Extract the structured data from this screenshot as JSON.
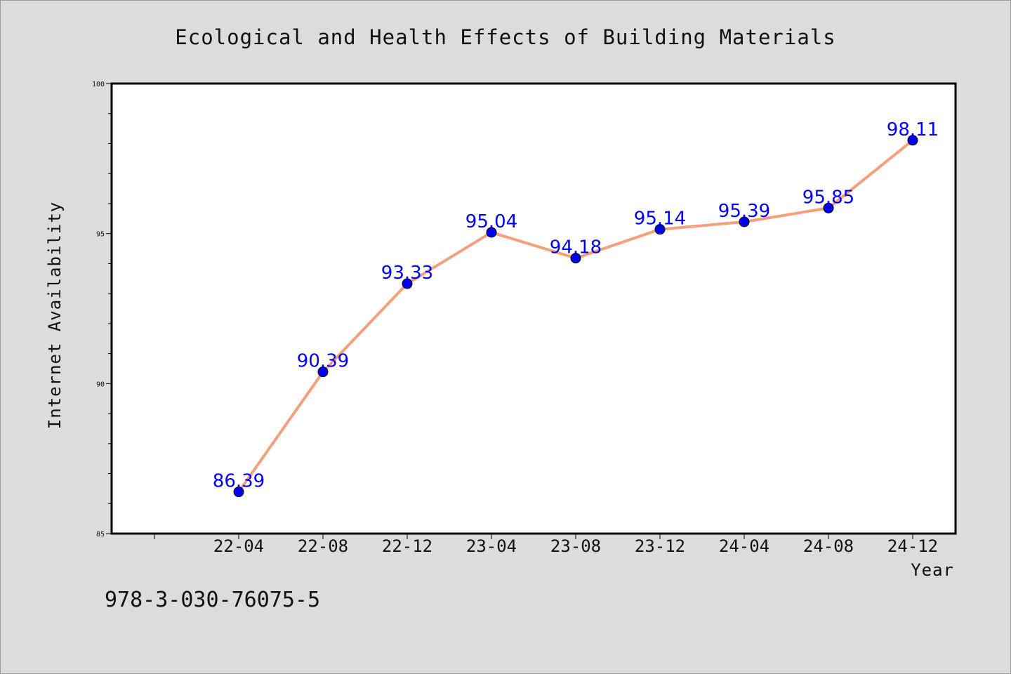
{
  "chart_data": {
    "type": "line",
    "title": "Ecological and Health Effects of Building Materials",
    "xlabel": "Year",
    "ylabel": "Internet Availability",
    "categories": [
      "22-04",
      "22-08",
      "22-12",
      "23-04",
      "23-08",
      "23-12",
      "24-04",
      "24-08",
      "24-12"
    ],
    "series": [
      {
        "values": [
          86.39,
          90.39,
          93.33,
          95.04,
          94.18,
          95.14,
          95.39,
          95.85,
          98.11
        ],
        "data_labels": [
          "86.39",
          "90.39",
          "93.33",
          "95.04",
          "94.18",
          "95.14",
          "95.39",
          "95.85",
          "98.11"
        ]
      }
    ],
    "ylim": [
      85,
      100
    ],
    "yticks": [
      85,
      90,
      95,
      100
    ],
    "ytick_labels": [
      "85",
      "90",
      "95",
      "100"
    ],
    "grid": false,
    "line_color": "#f4a07a",
    "marker_color": "#0000ee",
    "label_color": "#0000ff"
  },
  "footer": {
    "isbn": "978-3-030-76075-5"
  }
}
